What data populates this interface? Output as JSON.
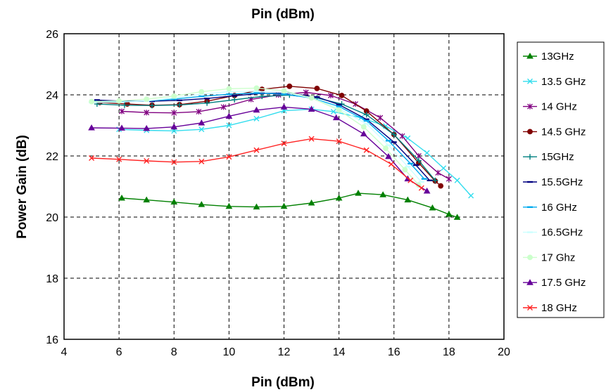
{
  "chart_data": {
    "type": "line",
    "title": "Pin (dBm)",
    "xlabel": "Pin (dBm)",
    "ylabel": "Power Gain (dB)",
    "xlim": [
      4,
      20
    ],
    "ylim": [
      16,
      26
    ],
    "xticks": [
      "4",
      "6",
      "8",
      "10",
      "12",
      "14",
      "16",
      "18",
      "20"
    ],
    "yticks": [
      "16",
      "18",
      "20",
      "22",
      "24",
      "26"
    ],
    "grid": true,
    "legend_position": "right",
    "series": [
      {
        "name": "13GHz",
        "color": "#008000",
        "marker": "triangle",
        "x": [
          6.1,
          7.0,
          8.0,
          9.0,
          10.0,
          11.0,
          12.0,
          13.0,
          14.0,
          14.7,
          15.6,
          16.5,
          17.4,
          18.0,
          18.3
        ],
        "y": [
          20.62,
          20.56,
          20.49,
          20.41,
          20.35,
          20.33,
          20.35,
          20.46,
          20.62,
          20.78,
          20.73,
          20.56,
          20.3,
          20.09,
          19.99
        ]
      },
      {
        "name": "13.5 GHz",
        "color": "#33ddee",
        "marker": "x",
        "x": [
          6.0,
          7.0,
          8.0,
          9.0,
          10.0,
          11.0,
          12.0,
          13.0,
          13.8,
          14.8,
          15.7,
          16.5,
          17.2,
          17.8,
          18.3,
          18.8
        ],
        "y": [
          22.87,
          22.84,
          22.82,
          22.87,
          23.0,
          23.22,
          23.48,
          23.53,
          23.45,
          23.25,
          22.98,
          22.58,
          22.1,
          21.6,
          21.2,
          20.7
        ]
      },
      {
        "name": "14 GHz",
        "color": "#800080",
        "marker": "star",
        "x": [
          6.1,
          7.0,
          8.0,
          8.9,
          9.8,
          10.8,
          11.8,
          12.8,
          13.7,
          14.6,
          15.5,
          16.3,
          16.9,
          17.6,
          18.0
        ],
        "y": [
          23.46,
          23.42,
          23.41,
          23.45,
          23.6,
          23.85,
          24.0,
          24.08,
          23.98,
          23.7,
          23.25,
          22.65,
          22.0,
          21.45,
          21.25
        ]
      },
      {
        "name": "14.5 GHz",
        "color": "#800000",
        "marker": "circle",
        "x": [
          5.3,
          6.3,
          7.2,
          8.2,
          9.2,
          10.2,
          11.2,
          12.2,
          13.2,
          14.1,
          15.0,
          16.0,
          16.9,
          17.5,
          17.7
        ],
        "y": [
          23.75,
          23.7,
          23.66,
          23.68,
          23.79,
          23.98,
          24.18,
          24.28,
          24.21,
          23.98,
          23.47,
          22.7,
          21.77,
          21.18,
          21.02
        ]
      },
      {
        "name": "15GHz",
        "color": "#008080",
        "marker": "plus",
        "x": [
          5.2,
          6.2,
          7.2,
          8.2,
          9.2,
          10.2,
          11.2,
          12.2,
          13.2,
          14.1,
          15.0,
          16.0,
          16.9,
          17.5
        ],
        "y": [
          23.7,
          23.66,
          23.65,
          23.67,
          23.73,
          23.84,
          23.95,
          23.99,
          23.9,
          23.7,
          23.35,
          22.7,
          21.85,
          21.2
        ]
      },
      {
        "name": "15.5GHz",
        "color": "#000080",
        "marker": "dash",
        "x": [
          5.2,
          6.2,
          7.2,
          8.2,
          9.2,
          10.2,
          11.2,
          12.2,
          13.2,
          14.0,
          15.0,
          16.0,
          16.8,
          17.3
        ],
        "y": [
          23.83,
          23.79,
          23.79,
          23.82,
          23.88,
          23.97,
          24.05,
          24.05,
          23.93,
          23.68,
          23.2,
          22.45,
          21.7,
          21.2
        ]
      },
      {
        "name": "16 GHz",
        "color": "#00aaee",
        "marker": "dash",
        "x": [
          5.1,
          6.0,
          7.0,
          8.0,
          9.0,
          10.0,
          11.0,
          12.0,
          13.0,
          14.0,
          15.0,
          15.8,
          16.6,
          17.1
        ],
        "y": [
          23.78,
          23.77,
          23.8,
          23.86,
          23.95,
          24.02,
          24.06,
          24.02,
          23.9,
          23.62,
          23.15,
          22.5,
          21.75,
          21.25
        ]
      },
      {
        "name": "16.5GHz",
        "color": "#ccffff",
        "marker": "dash",
        "x": [
          5.0,
          6.0,
          7.0,
          8.0,
          9.0,
          10.0,
          11.0,
          12.0,
          13.0,
          14.0,
          15.0,
          15.8,
          16.5,
          17.0
        ],
        "y": [
          23.75,
          23.76,
          23.8,
          23.9,
          24.02,
          24.1,
          24.12,
          24.08,
          23.9,
          23.55,
          23.05,
          22.35,
          21.65,
          21.15
        ]
      },
      {
        "name": "17 Ghz",
        "color": "#ccffcc",
        "marker": "circle",
        "x": [
          5.0,
          6.0,
          7.0,
          8.0,
          9.0,
          10.0,
          11.0,
          12.0,
          13.0,
          14.0,
          14.9,
          15.7,
          16.4,
          16.9
        ],
        "y": [
          23.78,
          23.8,
          23.86,
          23.96,
          24.1,
          24.2,
          24.22,
          24.13,
          23.9,
          23.5,
          22.95,
          22.25,
          21.55,
          21.05
        ]
      },
      {
        "name": "17.5 GHz",
        "color": "#660099",
        "marker": "triangle",
        "x": [
          5.0,
          6.1,
          7.0,
          8.0,
          9.0,
          10.0,
          11.0,
          12.0,
          13.0,
          13.9,
          14.9,
          15.8,
          16.5,
          17.2
        ],
        "y": [
          22.92,
          22.91,
          22.9,
          22.95,
          23.08,
          23.3,
          23.5,
          23.6,
          23.53,
          23.25,
          22.72,
          21.98,
          21.25,
          20.85
        ]
      },
      {
        "name": "18 GHz",
        "color": "#ff2222",
        "marker": "x",
        "x": [
          5.0,
          6.0,
          7.0,
          8.0,
          9.0,
          10.0,
          11.0,
          12.0,
          13.0,
          14.0,
          15.0,
          15.9,
          16.6,
          17.0
        ],
        "y": [
          21.93,
          21.89,
          21.84,
          21.8,
          21.82,
          21.97,
          22.19,
          22.41,
          22.56,
          22.48,
          22.19,
          21.73,
          21.2,
          20.95
        ]
      }
    ]
  }
}
